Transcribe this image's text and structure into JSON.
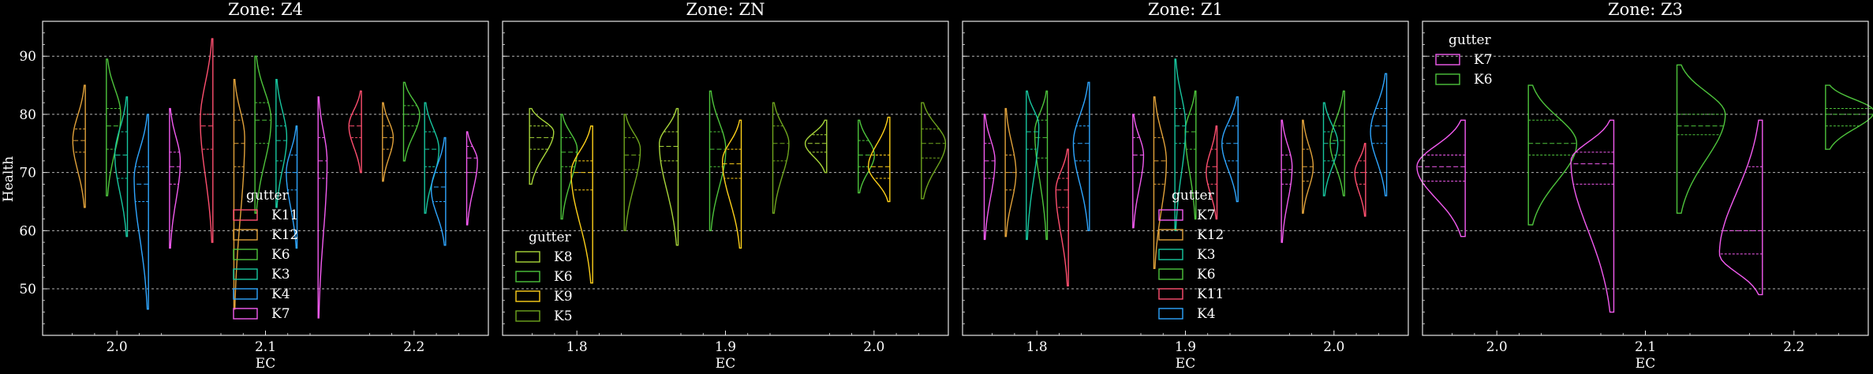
{
  "figure": {
    "ylabel": "Health",
    "xlabel": "EC",
    "group_label": "gutter",
    "background": "#000000",
    "axis_color": "#e6e6e6",
    "grid_color": "#b5b5b5"
  },
  "colors": {
    "K11": "#ff4f6f",
    "K12": "#e0a13a",
    "K6": "#4ec43c",
    "K3": "#18c7a0",
    "K4": "#2fa6ff",
    "K7": "#f35bf0",
    "K8": "#a8d63a",
    "K9": "#ffd11a",
    "K5": "#6fa51e"
  },
  "chart_data": [
    {
      "type": "violin",
      "title": "Zone: Z4",
      "xlabel": "EC",
      "ylabel": "Health",
      "ylim": [
        42,
        96
      ],
      "yticks": [
        50,
        60,
        70,
        80,
        90
      ],
      "categories": [
        "2.0",
        "2.1",
        "2.2"
      ],
      "legend": {
        "title": "gutter",
        "entries": [
          "K11",
          "K12",
          "K6",
          "K3",
          "K4",
          "K7"
        ],
        "placement": "center"
      },
      "violins": [
        {
          "cat": 0,
          "series": "K12",
          "side": "left",
          "min": 64,
          "max": 85,
          "q1": 73.5,
          "median": 75.5,
          "q3": 77.5,
          "mode": 75.5,
          "width": 0.7
        },
        {
          "cat": 0,
          "series": "K6",
          "side": "right",
          "min": 66,
          "max": 89.5,
          "q1": 74,
          "median": 78,
          "q3": 81,
          "mode": 80,
          "width": 0.8
        },
        {
          "cat": 0,
          "series": "K3",
          "side": "left",
          "min": 59,
          "max": 83,
          "q1": 69,
          "median": 73,
          "q3": 77,
          "mode": 73,
          "width": 0.7
        },
        {
          "cat": 0,
          "series": "K4",
          "side": "left",
          "min": 46.5,
          "max": 80,
          "q1": 65,
          "median": 68,
          "q3": 71,
          "mode": 69,
          "width": 0.8
        },
        {
          "cat": 0,
          "series": "K7",
          "side": "right",
          "min": 57,
          "max": 81,
          "q1": 68,
          "median": 71,
          "q3": 73.5,
          "mode": 72,
          "width": 0.6
        },
        {
          "cat": 1,
          "series": "K11",
          "side": "left",
          "min": 58,
          "max": 93,
          "q1": 74,
          "median": 78,
          "q3": 80,
          "mode": 79,
          "width": 0.7
        },
        {
          "cat": 1,
          "series": "K12",
          "side": "right",
          "min": 46.5,
          "max": 86,
          "q1": 71,
          "median": 75,
          "q3": 79,
          "mode": 76,
          "width": 0.6
        },
        {
          "cat": 1,
          "series": "K6",
          "side": "right",
          "min": 63,
          "max": 90,
          "q1": 75,
          "median": 79,
          "q3": 82,
          "mode": 79,
          "width": 0.9
        },
        {
          "cat": 1,
          "series": "K3",
          "side": "right",
          "min": 64,
          "max": 86,
          "q1": 72,
          "median": 75.5,
          "q3": 78,
          "mode": 76,
          "width": 0.6
        },
        {
          "cat": 1,
          "series": "K4",
          "side": "left",
          "min": 57,
          "max": 78,
          "q1": 67,
          "median": 70,
          "q3": 73,
          "mode": 70,
          "width": 0.6
        },
        {
          "cat": 1,
          "series": "K7",
          "side": "right",
          "min": 45,
          "max": 83,
          "q1": 69,
          "median": 72,
          "q3": 76,
          "mode": 72,
          "width": 0.5
        },
        {
          "cat": 2,
          "series": "K11",
          "side": "left",
          "min": 70,
          "max": 84,
          "q1": 76,
          "median": 78,
          "q3": 80,
          "mode": 78,
          "width": 0.7
        },
        {
          "cat": 2,
          "series": "K12",
          "side": "right",
          "min": 68.5,
          "max": 82,
          "q1": 74,
          "median": 76,
          "q3": 78,
          "mode": 76,
          "width": 0.6
        },
        {
          "cat": 2,
          "series": "K6",
          "side": "right",
          "min": 72,
          "max": 85.5,
          "q1": 78,
          "median": 80,
          "q3": 81.5,
          "mode": 80,
          "width": 0.9
        },
        {
          "cat": 2,
          "series": "K3",
          "side": "right",
          "min": 63,
          "max": 82,
          "q1": 71,
          "median": 74,
          "q3": 77,
          "mode": 74,
          "width": 0.8
        },
        {
          "cat": 2,
          "series": "K4",
          "side": "left",
          "min": 57.5,
          "max": 76,
          "q1": 65,
          "median": 67.5,
          "q3": 70,
          "mode": 67,
          "width": 0.8
        },
        {
          "cat": 2,
          "series": "K7",
          "side": "right",
          "min": 61,
          "max": 77,
          "q1": 70,
          "median": 72.5,
          "q3": 74.5,
          "mode": 72,
          "width": 0.6
        }
      ]
    },
    {
      "type": "violin",
      "title": "Zone: ZN",
      "xlabel": "EC",
      "ylabel": "",
      "ylim": [
        42,
        96
      ],
      "yticks": [
        50,
        60,
        70,
        80,
        90
      ],
      "categories": [
        "1.8",
        "1.9",
        "2.0"
      ],
      "legend": {
        "title": "gutter",
        "entries": [
          "K8",
          "K6",
          "K9",
          "K5"
        ],
        "placement": "lower left"
      },
      "violins": [
        {
          "cat": 0,
          "series": "K8",
          "side": "right",
          "min": 68,
          "max": 81,
          "q1": 74,
          "median": 76,
          "q3": 78,
          "mode": 77,
          "width": 0.9
        },
        {
          "cat": 0,
          "series": "K6",
          "side": "right",
          "min": 62,
          "max": 80,
          "q1": 71,
          "median": 73.5,
          "q3": 76,
          "mode": 74,
          "width": 0.6
        },
        {
          "cat": 0,
          "series": "K9",
          "side": "left",
          "min": 51,
          "max": 78,
          "q1": 67,
          "median": 70,
          "q3": 72,
          "mode": 70,
          "width": 0.8
        },
        {
          "cat": 0,
          "series": "K5",
          "side": "right",
          "min": 60,
          "max": 80,
          "q1": 70.5,
          "median": 73,
          "q3": 76,
          "mode": 74,
          "width": 0.6
        },
        {
          "cat": 1,
          "series": "K8",
          "side": "left",
          "min": 57.5,
          "max": 81,
          "q1": 72,
          "median": 74.5,
          "q3": 77,
          "mode": 75,
          "width": 0.7
        },
        {
          "cat": 1,
          "series": "K6",
          "side": "right",
          "min": 60,
          "max": 84,
          "q1": 71,
          "median": 74,
          "q3": 77,
          "mode": 74,
          "width": 0.6
        },
        {
          "cat": 1,
          "series": "K9",
          "side": "left",
          "min": 57,
          "max": 79,
          "q1": 69,
          "median": 71.5,
          "q3": 74,
          "mode": 72,
          "width": 0.7
        },
        {
          "cat": 1,
          "series": "K5",
          "side": "right",
          "min": 63,
          "max": 82,
          "q1": 72,
          "median": 75,
          "q3": 78,
          "mode": 75,
          "width": 0.6
        },
        {
          "cat": 2,
          "series": "K8",
          "side": "left",
          "min": 70,
          "max": 79,
          "q1": 73.5,
          "median": 75,
          "q3": 76.5,
          "mode": 75,
          "width": 0.8
        },
        {
          "cat": 2,
          "series": "K6",
          "side": "right",
          "min": 66.5,
          "max": 79,
          "q1": 71,
          "median": 73,
          "q3": 75.5,
          "mode": 73,
          "width": 0.6
        },
        {
          "cat": 2,
          "series": "K9",
          "side": "left",
          "min": 65,
          "max": 79.5,
          "q1": 69,
          "median": 71,
          "q3": 73,
          "mode": 71,
          "width": 0.8
        },
        {
          "cat": 2,
          "series": "K5",
          "side": "right",
          "min": 65.5,
          "max": 82,
          "q1": 72.5,
          "median": 75,
          "q3": 77.5,
          "mode": 75,
          "width": 0.9
        }
      ]
    },
    {
      "type": "violin",
      "title": "Zone: Z1",
      "xlabel": "EC",
      "ylabel": "",
      "ylim": [
        42,
        96
      ],
      "yticks": [
        50,
        60,
        70,
        80,
        90
      ],
      "categories": [
        "1.8",
        "1.9",
        "2.0"
      ],
      "legend": {
        "title": "gutter",
        "entries": [
          "K7",
          "K12",
          "K3",
          "K6",
          "K11",
          "K4"
        ],
        "placement": "center"
      },
      "violins": [
        {
          "cat": 0,
          "series": "K11",
          "side": "left",
          "min": 50.5,
          "max": 74,
          "q1": 64,
          "median": 67,
          "q3": 69,
          "mode": 67,
          "width": 0.7
        },
        {
          "cat": 0,
          "series": "K12",
          "side": "right",
          "min": 59,
          "max": 81,
          "q1": 67,
          "median": 70,
          "q3": 73,
          "mode": 70,
          "width": 0.6
        },
        {
          "cat": 0,
          "series": "K6",
          "side": "left",
          "min": 58.5,
          "max": 84,
          "q1": 72.5,
          "median": 76,
          "q3": 79,
          "mode": 77,
          "width": 0.7
        },
        {
          "cat": 0,
          "series": "K3",
          "side": "right",
          "min": 58.5,
          "max": 84,
          "q1": 74,
          "median": 77,
          "q3": 80,
          "mode": 78,
          "width": 0.7
        },
        {
          "cat": 0,
          "series": "K4",
          "side": "left",
          "min": 60,
          "max": 85.5,
          "q1": 72,
          "median": 75,
          "q3": 78,
          "mode": 75,
          "width": 0.9
        },
        {
          "cat": 0,
          "series": "K7",
          "side": "right",
          "min": 58.5,
          "max": 80,
          "q1": 69,
          "median": 72,
          "q3": 75,
          "mode": 72,
          "width": 0.6
        },
        {
          "cat": 1,
          "series": "K11",
          "side": "left",
          "min": 62,
          "max": 78,
          "q1": 68,
          "median": 71,
          "q3": 74,
          "mode": 70,
          "width": 0.6
        },
        {
          "cat": 1,
          "series": "K12",
          "side": "right",
          "min": 53.5,
          "max": 83,
          "q1": 68,
          "median": 72,
          "q3": 76,
          "mode": 72,
          "width": 0.7
        },
        {
          "cat": 1,
          "series": "K6",
          "side": "left",
          "min": 62,
          "max": 84,
          "q1": 74,
          "median": 77,
          "q3": 80,
          "mode": 77,
          "width": 0.6
        },
        {
          "cat": 1,
          "series": "K3",
          "side": "right",
          "min": 60,
          "max": 89.5,
          "q1": 75,
          "median": 78,
          "q3": 81,
          "mode": 78,
          "width": 0.6
        },
        {
          "cat": 1,
          "series": "K4",
          "side": "left",
          "min": 65,
          "max": 83,
          "q1": 72,
          "median": 75,
          "q3": 78,
          "mode": 75,
          "width": 0.9
        },
        {
          "cat": 1,
          "series": "K7",
          "side": "right",
          "min": 60.5,
          "max": 80,
          "q1": 70,
          "median": 73,
          "q3": 76,
          "mode": 73,
          "width": 0.6
        },
        {
          "cat": 2,
          "series": "K11",
          "side": "left",
          "min": 62.5,
          "max": 75,
          "q1": 68,
          "median": 70,
          "q3": 72,
          "mode": 70,
          "width": 0.6
        },
        {
          "cat": 2,
          "series": "K12",
          "side": "right",
          "min": 63,
          "max": 79,
          "q1": 68.5,
          "median": 71,
          "q3": 74,
          "mode": 71,
          "width": 0.6
        },
        {
          "cat": 2,
          "series": "K6",
          "side": "left",
          "min": 66,
          "max": 84,
          "q1": 73,
          "median": 75.5,
          "q3": 78,
          "mode": 75,
          "width": 0.8
        },
        {
          "cat": 2,
          "series": "K3",
          "side": "right",
          "min": 66,
          "max": 82,
          "q1": 72,
          "median": 75,
          "q3": 77,
          "mode": 75,
          "width": 0.8
        },
        {
          "cat": 2,
          "series": "K4",
          "side": "left",
          "min": 66,
          "max": 87,
          "q1": 75,
          "median": 78,
          "q3": 81,
          "mode": 77,
          "width": 0.9
        },
        {
          "cat": 2,
          "series": "K7",
          "side": "right",
          "min": 58,
          "max": 79,
          "q1": 68,
          "median": 70.5,
          "q3": 73,
          "mode": 71,
          "width": 0.6
        }
      ]
    },
    {
      "type": "violin",
      "title": "Zone: Z3",
      "xlabel": "EC",
      "ylabel": "",
      "ylim": [
        42,
        96
      ],
      "yticks": [
        50,
        60,
        70,
        80,
        90
      ],
      "categories": [
        "2.0",
        "2.1",
        "2.2"
      ],
      "legend": {
        "title": "gutter",
        "entries": [
          "K7",
          "K6"
        ],
        "placement": "upper left"
      },
      "violins": [
        {
          "cat": 0,
          "series": "K7",
          "side": "left",
          "min": 59,
          "max": 79,
          "q1": 68.5,
          "median": 71,
          "q3": 73,
          "mode": 71,
          "width": 0.9
        },
        {
          "cat": 0,
          "series": "K6",
          "side": "right",
          "min": 61,
          "max": 85,
          "q1": 73,
          "median": 75,
          "q3": 79,
          "mode": 75,
          "width": 0.9
        },
        {
          "cat": 1,
          "series": "K7",
          "side": "left",
          "min": 46,
          "max": 79,
          "q1": 68,
          "median": 71.5,
          "q3": 73.5,
          "mode": 72,
          "width": 0.8
        },
        {
          "cat": 1,
          "series": "K6",
          "side": "right",
          "min": 63,
          "max": 88.5,
          "q1": 76.5,
          "median": 78,
          "q3": 80,
          "mode": 80,
          "width": 0.9
        },
        {
          "cat": 2,
          "series": "K7",
          "side": "left",
          "min": 49,
          "max": 79,
          "q1": 56,
          "median": 60,
          "q3": 71,
          "mode": 56,
          "width": 0.8
        },
        {
          "cat": 2,
          "series": "K6",
          "side": "right",
          "min": 74,
          "max": 85,
          "q1": 78,
          "median": 80,
          "q3": 81,
          "mode": 80.5,
          "width": 0.9
        }
      ]
    }
  ]
}
